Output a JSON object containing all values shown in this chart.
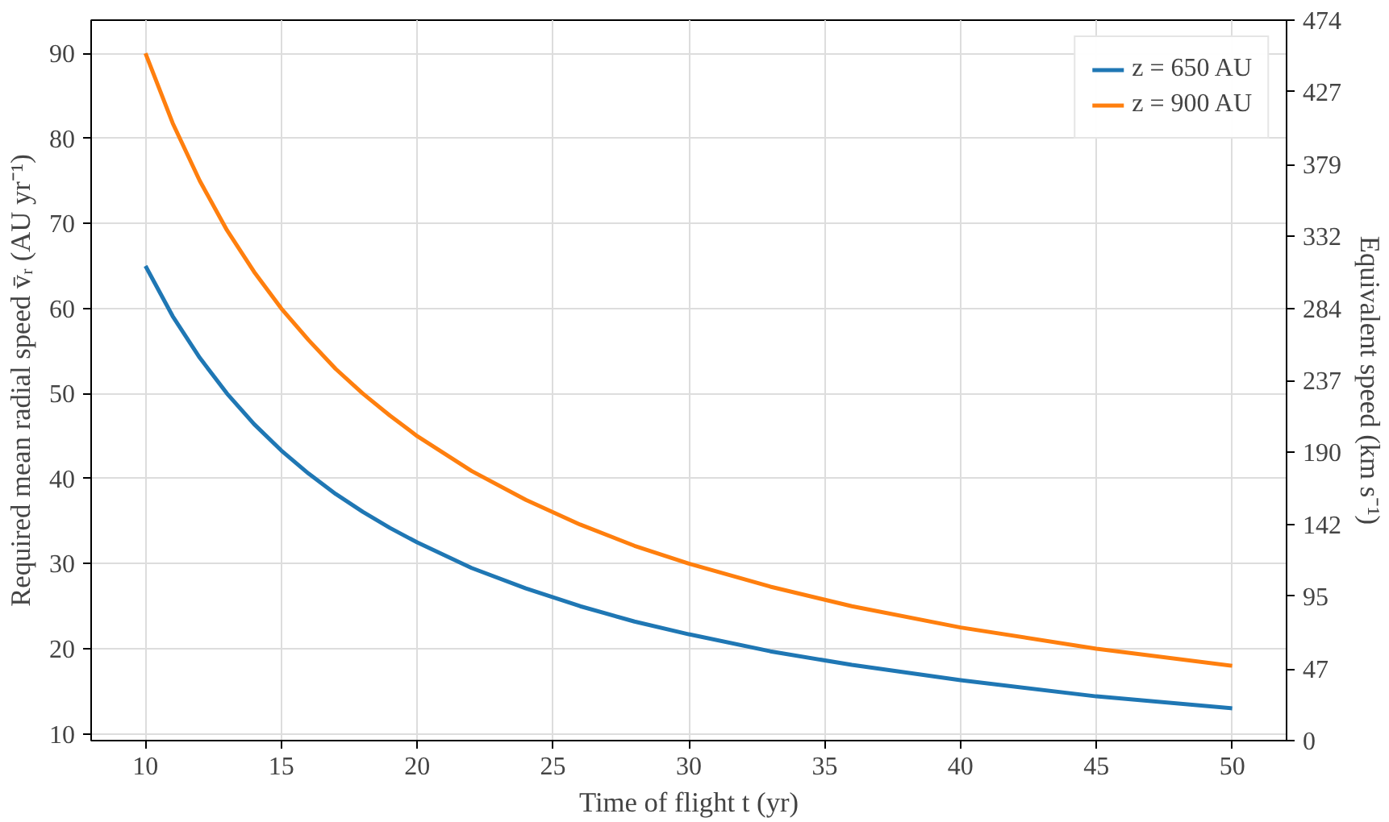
{
  "chart_data": {
    "type": "line",
    "xlabel": "Time of flight t (yr)",
    "ylabel": "Required mean radial speed v̄ᵣ (AU yr⁻¹)",
    "y2label": "Equivalent speed (km s⁻¹)",
    "x": [
      10,
      11,
      12,
      13,
      14,
      15,
      16,
      17,
      18,
      19,
      20,
      22,
      24,
      26,
      28,
      30,
      33,
      36,
      40,
      45,
      50
    ],
    "series": [
      {
        "name": "z = 650 AU",
        "color": "#1f77b4",
        "values": [
          65,
          59.1,
          54.2,
          50,
          46.4,
          43.3,
          40.6,
          38.2,
          36.1,
          34.2,
          32.5,
          29.5,
          27.1,
          25,
          23.2,
          21.7,
          19.7,
          18.1,
          16.3,
          14.4,
          13
        ]
      },
      {
        "name": "z = 900 AU",
        "color": "#ff7f0e",
        "values": [
          90,
          81.8,
          75,
          69.2,
          64.3,
          60,
          56.3,
          52.9,
          50,
          47.4,
          45,
          40.9,
          37.5,
          34.6,
          32.1,
          30,
          27.3,
          25,
          22.5,
          20,
          18
        ]
      }
    ],
    "xlim": [
      8,
      52
    ],
    "xticks": [
      10,
      15,
      20,
      25,
      30,
      35,
      40,
      45,
      50
    ],
    "ylim": [
      9.2,
      93.9
    ],
    "yticks": [
      10,
      20,
      30,
      40,
      50,
      60,
      70,
      80,
      90
    ],
    "y2lim": [
      0,
      474
    ],
    "y2ticks": [
      0,
      47,
      95,
      142,
      190,
      237,
      284,
      332,
      379,
      427,
      474
    ],
    "grid": true,
    "legend": "top right"
  }
}
